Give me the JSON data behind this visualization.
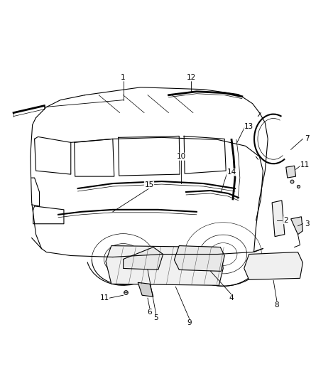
{
  "background_color": "#ffffff",
  "line_color": "#000000",
  "fig_width": 4.38,
  "fig_height": 5.33,
  "dpi": 100,
  "label_fontsize": 7.5,
  "line_width": 0.8
}
